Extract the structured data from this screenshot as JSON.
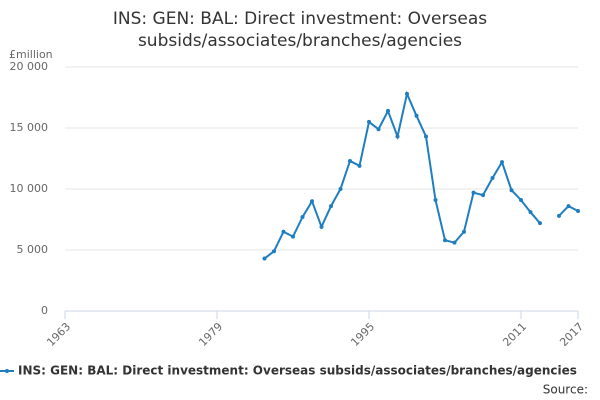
{
  "chart_data": {
    "type": "line",
    "title": [
      "INS: GEN: BAL: Direct investment: Overseas",
      "subsids/associates/branches/agencies"
    ],
    "y_axis_label": "£million",
    "source": "Source:",
    "x": [
      1984,
      1985,
      1986,
      1987,
      1988,
      1989,
      1990,
      1991,
      1992,
      1993,
      1994,
      1995,
      1996,
      1997,
      1998,
      1999,
      2000,
      2001,
      2002,
      2003,
      2004,
      2005,
      2006,
      2007,
      2008,
      2009,
      2010,
      2011,
      2012,
      2013,
      2014,
      2015,
      2016,
      2017
    ],
    "series": [
      {
        "name": "INS: GEN: BAL: Direct investment: Overseas subsids/associates/branches/agencies",
        "color": "#1f7ec0",
        "values": [
          4300,
          4900,
          6500,
          6100,
          7700,
          9000,
          6900,
          8600,
          10000,
          12300,
          11900,
          15500,
          14900,
          16400,
          14300,
          17800,
          16000,
          14300,
          9100,
          5800,
          5600,
          6500,
          9700,
          9500,
          10900,
          12200,
          9900,
          9100,
          8100,
          7200,
          null,
          7800,
          8600,
          8200
        ]
      }
    ],
    "xlim": [
      1963,
      2017
    ],
    "xticks": [
      1963,
      1979,
      1995,
      2011,
      2017
    ],
    "ylim": [
      0,
      20000
    ],
    "yticks": [
      0,
      {
        "value": 5000,
        "label": "5 000"
      },
      {
        "value": 10000,
        "label": "10 000"
      },
      {
        "value": 15000,
        "label": "15 000"
      },
      {
        "value": 20000,
        "label": "20 000"
      }
    ],
    "grid": true
  }
}
